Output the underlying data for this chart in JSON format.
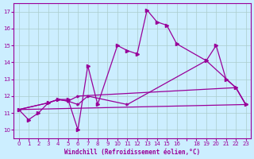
{
  "title": "",
  "xlabel": "Windchill (Refroidissement éolien,°C)",
  "ylabel": "",
  "bg_color": "#cceeff",
  "line_color": "#990099",
  "grid_color": "#aacccc",
  "xlim": [
    -0.5,
    23.5
  ],
  "ylim": [
    9.5,
    17.5
  ],
  "xticks": [
    0,
    1,
    2,
    3,
    4,
    5,
    6,
    7,
    8,
    9,
    10,
    11,
    12,
    13,
    14,
    15,
    16,
    17,
    18,
    19,
    20,
    21,
    22,
    23
  ],
  "xtick_labels": [
    "0",
    "1",
    "2",
    "3",
    "4",
    "5",
    "6",
    "7",
    "8",
    "9",
    "10",
    "11",
    "12",
    "13",
    "14",
    "15",
    "16",
    "",
    "18",
    "19",
    "20",
    "21",
    "22",
    "23"
  ],
  "yticks": [
    10,
    11,
    12,
    13,
    14,
    15,
    16,
    17
  ],
  "lines": [
    {
      "x": [
        0,
        1,
        2,
        3,
        4,
        5,
        6,
        7,
        8,
        10,
        11,
        12,
        13,
        14,
        15,
        16,
        19,
        20,
        21,
        22,
        23
      ],
      "y": [
        11.2,
        10.6,
        11.0,
        11.6,
        11.8,
        11.8,
        10.0,
        13.8,
        11.5,
        15.0,
        14.7,
        14.5,
        17.1,
        16.4,
        16.2,
        15.1,
        14.1,
        15.0,
        13.0,
        12.5,
        11.5
      ]
    },
    {
      "x": [
        0,
        3,
        4,
        5,
        6,
        7,
        11,
        19,
        22,
        23
      ],
      "y": [
        11.2,
        11.6,
        11.8,
        11.7,
        11.5,
        12.0,
        11.5,
        14.1,
        12.5,
        11.5
      ]
    },
    {
      "x": [
        0,
        3,
        4,
        5,
        6,
        22,
        23
      ],
      "y": [
        11.2,
        11.6,
        11.8,
        11.7,
        12.0,
        12.5,
        11.5
      ]
    },
    {
      "x": [
        0,
        23
      ],
      "y": [
        11.2,
        11.5
      ]
    }
  ]
}
